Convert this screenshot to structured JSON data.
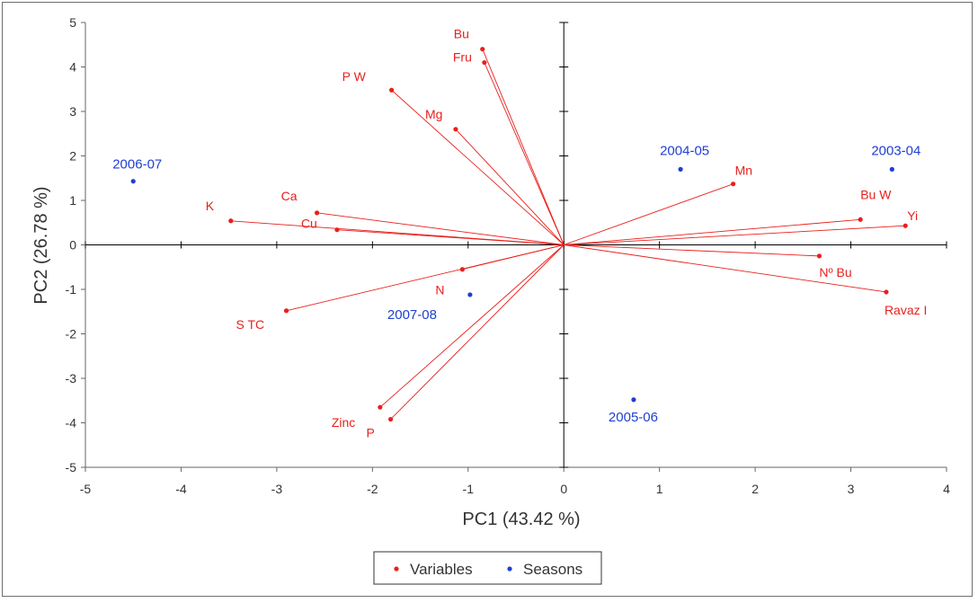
{
  "chart_data": {
    "type": "scatter",
    "title": "",
    "xlabel": "PC1 (43.42 %)",
    "ylabel": "PC2 (26.78 %)",
    "xlim": [
      -5,
      4
    ],
    "ylim": [
      -5,
      5
    ],
    "xticks": [
      -5,
      -4,
      -3,
      -2,
      -1,
      0,
      1,
      2,
      3,
      4
    ],
    "yticks": [
      -5,
      -4,
      -3,
      -2,
      -1,
      0,
      1,
      2,
      3,
      4,
      5
    ],
    "grid": false,
    "legend_position": "bottom-center",
    "colors": {
      "variables": "#e8201c",
      "seasons": "#1f3fd1"
    },
    "series": [
      {
        "name": "Variables",
        "vectors_from_origin": true,
        "points": [
          {
            "label": "Bu",
            "x": -0.85,
            "y": 4.4
          },
          {
            "label": "Fru",
            "x": -0.83,
            "y": 4.1
          },
          {
            "label": "P W",
            "x": -1.8,
            "y": 3.48
          },
          {
            "label": "Mg",
            "x": -1.13,
            "y": 2.6
          },
          {
            "label": "Ca",
            "x": -2.58,
            "y": 0.72
          },
          {
            "label": "Cu",
            "x": -2.37,
            "y": 0.34
          },
          {
            "label": "K",
            "x": -3.48,
            "y": 0.54
          },
          {
            "label": "N",
            "x": -1.06,
            "y": -0.55
          },
          {
            "label": "S TC",
            "x": -2.9,
            "y": -1.48
          },
          {
            "label": "Zinc",
            "x": -1.92,
            "y": -3.65
          },
          {
            "label": "P",
            "x": -1.81,
            "y": -3.92
          },
          {
            "label": "Mn",
            "x": 1.77,
            "y": 1.37
          },
          {
            "label": "Bu W",
            "x": 3.1,
            "y": 0.57
          },
          {
            "label": "Yi",
            "x": 3.57,
            "y": 0.43
          },
          {
            "label": "Nº Bu",
            "x": 2.67,
            "y": -0.25
          },
          {
            "label": "Ravaz I",
            "x": 3.37,
            "y": -1.06
          }
        ]
      },
      {
        "name": "Seasons",
        "vectors_from_origin": false,
        "points": [
          {
            "label": "2006-07",
            "x": -4.5,
            "y": 1.43
          },
          {
            "label": "2004-05",
            "x": 1.22,
            "y": 1.7
          },
          {
            "label": "2003-04",
            "x": 3.43,
            "y": 1.7
          },
          {
            "label": "2007-08",
            "x": -0.98,
            "y": -1.12
          },
          {
            "label": "2005-06",
            "x": 0.73,
            "y": -3.48
          }
        ]
      }
    ]
  }
}
